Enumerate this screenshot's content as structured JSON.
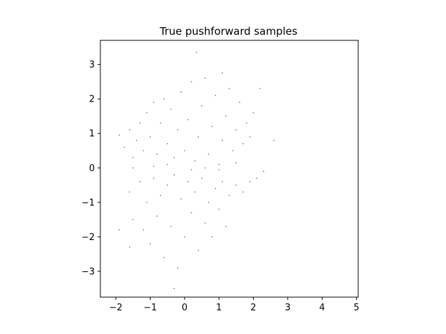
{
  "chart_data": {
    "type": "scatter",
    "title": "True pushforward samples",
    "xlabel": "",
    "ylabel": "",
    "xlim": [
      -2.45,
      5.05
    ],
    "ylim": [
      -3.75,
      3.7
    ],
    "xticks": [
      -2,
      -1,
      0,
      1,
      2,
      3,
      4,
      5
    ],
    "yticks": [
      -3,
      -2,
      -1,
      0,
      1,
      2,
      3
    ],
    "grid": false,
    "legend": "none",
    "marker_color": "#1f77b4",
    "series": [
      {
        "points": [
          [
            -1.9,
            0.95
          ],
          [
            -1.75,
            0.6
          ],
          [
            -1.6,
            1.1
          ],
          [
            -1.5,
            0.3
          ],
          [
            -1.4,
            0.8
          ],
          [
            -1.3,
            1.3
          ],
          [
            -1.2,
            0.5
          ],
          [
            -1.1,
            1.6
          ],
          [
            -1.0,
            0.9
          ],
          [
            -0.9,
            1.9
          ],
          [
            -0.8,
            0.4
          ],
          [
            -0.7,
            1.3
          ],
          [
            -0.6,
            2.0
          ],
          [
            -0.5,
            0.7
          ],
          [
            -0.4,
            1.7
          ],
          [
            -0.3,
            0.3
          ],
          [
            -0.2,
            1.1
          ],
          [
            -0.1,
            2.2
          ],
          [
            0.0,
            0.5
          ],
          [
            0.1,
            1.4
          ],
          [
            0.2,
            2.5
          ],
          [
            0.3,
            0.2
          ],
          [
            0.4,
            0.9
          ],
          [
            0.5,
            1.8
          ],
          [
            0.6,
            2.6
          ],
          [
            0.7,
            0.4
          ],
          [
            0.8,
            1.2
          ],
          [
            0.9,
            2.1
          ],
          [
            1.0,
            0.1
          ],
          [
            1.1,
            0.8
          ],
          [
            1.2,
            1.5
          ],
          [
            1.3,
            2.3
          ],
          [
            1.4,
            0.5
          ],
          [
            1.5,
            1.1
          ],
          [
            1.6,
            1.9
          ],
          [
            1.7,
            0.7
          ],
          [
            1.8,
            1.3
          ],
          [
            1.9,
            0.9
          ],
          [
            2.0,
            1.6
          ],
          [
            2.2,
            2.3
          ],
          [
            2.6,
            0.8
          ],
          [
            -1.5,
            0.0
          ],
          [
            -0.9,
            0.05
          ],
          [
            -0.5,
            0.1
          ],
          [
            0.2,
            -0.05
          ],
          [
            0.6,
            0.0
          ],
          [
            1.0,
            -0.05
          ],
          [
            1.5,
            0.15
          ],
          [
            -1.6,
            -0.7
          ],
          [
            -1.3,
            -0.4
          ],
          [
            -1.1,
            -1.0
          ],
          [
            -0.9,
            -0.3
          ],
          [
            -0.7,
            -0.8
          ],
          [
            -0.5,
            -0.5
          ],
          [
            -0.3,
            -0.2
          ],
          [
            -0.1,
            -0.9
          ],
          [
            0.1,
            -0.4
          ],
          [
            0.3,
            -0.7
          ],
          [
            0.5,
            -0.3
          ],
          [
            0.7,
            -1.0
          ],
          [
            0.9,
            -0.6
          ],
          [
            1.1,
            -0.4
          ],
          [
            1.3,
            -0.8
          ],
          [
            1.5,
            -0.5
          ],
          [
            1.7,
            -0.7
          ],
          [
            1.9,
            -0.4
          ],
          [
            2.1,
            -0.3
          ],
          [
            2.3,
            -0.1
          ],
          [
            -1.5,
            -1.5
          ],
          [
            -1.2,
            -1.8
          ],
          [
            -1.0,
            -2.2
          ],
          [
            -0.8,
            -1.4
          ],
          [
            -0.6,
            -2.6
          ],
          [
            -0.4,
            -1.7
          ],
          [
            -0.2,
            -2.9
          ],
          [
            -0.3,
            -3.5
          ],
          [
            0.0,
            -2.0
          ],
          [
            0.2,
            -1.3
          ],
          [
            0.4,
            -2.4
          ],
          [
            0.6,
            -1.6
          ],
          [
            0.8,
            -2.0
          ],
          [
            1.0,
            -1.2
          ],
          [
            1.2,
            -1.7
          ],
          [
            -1.9,
            -1.8
          ],
          [
            -1.6,
            -2.3
          ],
          [
            0.35,
            3.35
          ],
          [
            1.1,
            2.75
          ]
        ]
      }
    ]
  }
}
